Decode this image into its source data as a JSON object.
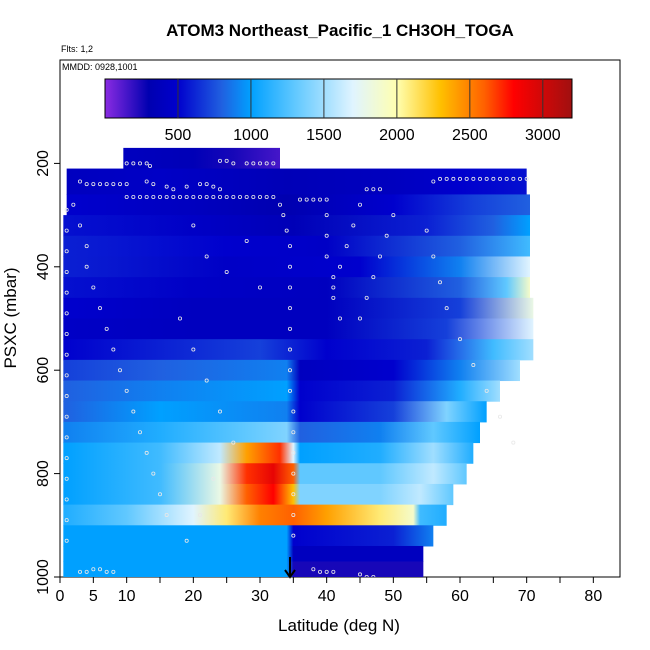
{
  "chart_data": {
    "type": "heatmap",
    "title": "ATOM3 Northeast_Pacific_1 CH3OH_TOGA",
    "flights_note": "Flts: 1,2",
    "date_note": "MMDD: 0928,1001",
    "xlabel": "Latitude (deg N)",
    "ylabel": "PSXC (mbar)",
    "xlim": [
      0,
      84
    ],
    "ylim": [
      1000,
      0
    ],
    "x_ticks": [
      0,
      5,
      10,
      20,
      30,
      40,
      50,
      60,
      70,
      80
    ],
    "y_ticks": [
      200,
      400,
      600,
      800,
      1000
    ],
    "colorbar": {
      "range": [
        0,
        3200
      ],
      "ticks": [
        500,
        1000,
        1500,
        2000,
        2500,
        3000
      ],
      "stops": [
        {
          "v": 0,
          "c": "#8a2be2"
        },
        {
          "v": 300,
          "c": "#0000b0"
        },
        {
          "v": 500,
          "c": "#0000cd"
        },
        {
          "v": 800,
          "c": "#2060e0"
        },
        {
          "v": 1000,
          "c": "#00a0ff"
        },
        {
          "v": 1300,
          "c": "#60c8ff"
        },
        {
          "v": 1700,
          "c": "#e0f4ff"
        },
        {
          "v": 2000,
          "c": "#ffffb0"
        },
        {
          "v": 2300,
          "c": "#ffc000"
        },
        {
          "v": 2600,
          "c": "#ff6000"
        },
        {
          "v": 2800,
          "c": "#ff0000"
        },
        {
          "v": 3200,
          "c": "#a01010"
        }
      ]
    },
    "marker": {
      "x": 34.5,
      "y": 1000,
      "label": "arrow"
    },
    "bands": [
      {
        "p0": 170,
        "p1": 210,
        "x0": 9.5,
        "x1": 33,
        "pts": [
          [
            9.5,
            400
          ],
          [
            20,
            350
          ],
          [
            26,
            250
          ],
          [
            33,
            150
          ]
        ]
      },
      {
        "p0": 210,
        "p1": 260,
        "x0": 1,
        "x1": 70,
        "pts": [
          [
            1,
            400
          ],
          [
            15,
            450
          ],
          [
            34,
            350
          ],
          [
            50,
            400
          ],
          [
            60,
            500
          ],
          [
            70,
            550
          ]
        ]
      },
      {
        "p0": 260,
        "p1": 300,
        "x0": 1,
        "x1": 70.5,
        "pts": [
          [
            1,
            500
          ],
          [
            20,
            400
          ],
          [
            34,
            300
          ],
          [
            50,
            500
          ],
          [
            62,
            700
          ],
          [
            70.5,
            800
          ]
        ]
      },
      {
        "p0": 300,
        "p1": 340,
        "x0": 0.5,
        "x1": 70.5,
        "pts": [
          [
            0.5,
            550
          ],
          [
            20,
            450
          ],
          [
            35,
            350
          ],
          [
            55,
            600
          ],
          [
            65,
            800
          ],
          [
            70.5,
            1000
          ]
        ]
      },
      {
        "p0": 340,
        "p1": 380,
        "x0": 0.5,
        "x1": 70.5,
        "pts": [
          [
            0.5,
            600
          ],
          [
            25,
            500
          ],
          [
            40,
            450
          ],
          [
            60,
            800
          ],
          [
            70.5,
            1200
          ]
        ]
      },
      {
        "p0": 380,
        "p1": 420,
        "x0": 0.5,
        "x1": 70.5,
        "pts": [
          [
            0.5,
            600
          ],
          [
            25,
            450
          ],
          [
            45,
            500
          ],
          [
            60,
            900
          ],
          [
            70.5,
            1700
          ]
        ]
      },
      {
        "p0": 420,
        "p1": 460,
        "x0": 0.5,
        "x1": 70.5,
        "pts": [
          [
            0.5,
            550
          ],
          [
            20,
            450
          ],
          [
            40,
            400
          ],
          [
            60,
            800
          ],
          [
            67,
            1300
          ],
          [
            70.5,
            1900
          ]
        ]
      },
      {
        "p0": 460,
        "p1": 500,
        "x0": 0.5,
        "x1": 71,
        "pts": [
          [
            0.5,
            500
          ],
          [
            20,
            400
          ],
          [
            40,
            400
          ],
          [
            60,
            700
          ],
          [
            71,
            1800
          ]
        ]
      },
      {
        "p0": 500,
        "p1": 540,
        "x0": 0.5,
        "x1": 71,
        "pts": [
          [
            0.5,
            450
          ],
          [
            20,
            400
          ],
          [
            40,
            400
          ],
          [
            58,
            700
          ],
          [
            71,
            1700
          ]
        ]
      },
      {
        "p0": 540,
        "p1": 580,
        "x0": 0.5,
        "x1": 71,
        "pts": [
          [
            0.5,
            500
          ],
          [
            15,
            600
          ],
          [
            30,
            700
          ],
          [
            40,
            500
          ],
          [
            55,
            600
          ],
          [
            65,
            1200
          ],
          [
            71,
            1500
          ]
        ]
      },
      {
        "p0": 580,
        "p1": 620,
        "x0": 0.5,
        "x1": 69,
        "pts": [
          [
            0.5,
            700
          ],
          [
            15,
            800
          ],
          [
            34,
            900
          ],
          [
            36,
            400
          ],
          [
            50,
            500
          ],
          [
            60,
            900
          ],
          [
            69,
            1500
          ]
        ]
      },
      {
        "p0": 620,
        "p1": 660,
        "x0": 0.5,
        "x1": 66,
        "pts": [
          [
            0.5,
            800
          ],
          [
            15,
            900
          ],
          [
            34,
            1000
          ],
          [
            36,
            500
          ],
          [
            50,
            600
          ],
          [
            60,
            1100
          ],
          [
            66,
            1500
          ]
        ]
      },
      {
        "p0": 660,
        "p1": 700,
        "x0": 0.5,
        "x1": 64,
        "pts": [
          [
            0.5,
            800
          ],
          [
            15,
            1000
          ],
          [
            34,
            900
          ],
          [
            36,
            500
          ],
          [
            50,
            700
          ],
          [
            58,
            1400
          ],
          [
            64,
            1000
          ]
        ]
      },
      {
        "p0": 700,
        "p1": 740,
        "x0": 0.5,
        "x1": 63,
        "pts": [
          [
            0.5,
            900
          ],
          [
            15,
            1100
          ],
          [
            28,
            1300
          ],
          [
            34,
            1400
          ],
          [
            36,
            800
          ],
          [
            48,
            900
          ],
          [
            56,
            1300
          ],
          [
            63,
            1000
          ]
        ]
      },
      {
        "p0": 740,
        "p1": 780,
        "x0": 0.5,
        "x1": 62,
        "pts": [
          [
            0.5,
            1000
          ],
          [
            15,
            1200
          ],
          [
            24,
            1600
          ],
          [
            28,
            2400
          ],
          [
            33,
            2700
          ],
          [
            35,
            1700
          ],
          [
            36,
            1000
          ],
          [
            48,
            1100
          ],
          [
            56,
            1500
          ],
          [
            62,
            1100
          ]
        ]
      },
      {
        "p0": 780,
        "p1": 820,
        "x0": 0.5,
        "x1": 61,
        "pts": [
          [
            0.5,
            1000
          ],
          [
            15,
            1200
          ],
          [
            24,
            1800
          ],
          [
            28,
            2700
          ],
          [
            32,
            2900
          ],
          [
            35,
            2600
          ],
          [
            36,
            1300
          ],
          [
            48,
            1300
          ],
          [
            56,
            1600
          ],
          [
            61,
            1300
          ]
        ]
      },
      {
        "p0": 820,
        "p1": 860,
        "x0": 0.5,
        "x1": 59,
        "pts": [
          [
            0.5,
            1000
          ],
          [
            15,
            1200
          ],
          [
            24,
            1800
          ],
          [
            28,
            2600
          ],
          [
            32,
            2800
          ],
          [
            35,
            2300
          ],
          [
            36,
            1400
          ],
          [
            48,
            1400
          ],
          [
            54,
            1600
          ],
          [
            59,
            1300
          ]
        ]
      },
      {
        "p0": 860,
        "p1": 900,
        "x0": 0.5,
        "x1": 58,
        "pts": [
          [
            0.5,
            1100
          ],
          [
            10,
            1300
          ],
          [
            20,
            1700
          ],
          [
            25,
            2100
          ],
          [
            30,
            2500
          ],
          [
            35,
            2600
          ],
          [
            40,
            2400
          ],
          [
            48,
            2100
          ],
          [
            53,
            1900
          ],
          [
            54,
            1200
          ],
          [
            58,
            1100
          ]
        ]
      },
      {
        "p0": 900,
        "p1": 940,
        "x0": 0.5,
        "x1": 56,
        "pts": [
          [
            0.5,
            1000
          ],
          [
            20,
            1000
          ],
          [
            34,
            1000
          ],
          [
            35,
            500
          ],
          [
            50,
            600
          ],
          [
            56,
            900
          ]
        ]
      },
      {
        "p0": 940,
        "p1": 970,
        "x0": 0.5,
        "x1": 54.5,
        "pts": [
          [
            0.5,
            1000
          ],
          [
            20,
            1000
          ],
          [
            34,
            1000
          ],
          [
            35,
            400
          ],
          [
            54.5,
            400
          ]
        ]
      },
      {
        "p0": 970,
        "p1": 1000,
        "x0": 0.5,
        "x1": 54.5,
        "pts": [
          [
            0.5,
            1000
          ],
          [
            20,
            1000
          ],
          [
            34,
            1000
          ],
          [
            35,
            250
          ],
          [
            54.5,
            250
          ]
        ]
      }
    ],
    "samples": [
      [
        10,
        200
      ],
      [
        11,
        200
      ],
      [
        12,
        200
      ],
      [
        13,
        200
      ],
      [
        13.5,
        205
      ],
      [
        24,
        195
      ],
      [
        25,
        195
      ],
      [
        26,
        200
      ],
      [
        28,
        200
      ],
      [
        29,
        200
      ],
      [
        30,
        200
      ],
      [
        31,
        200
      ],
      [
        32,
        200
      ],
      [
        3,
        235
      ],
      [
        4,
        240
      ],
      [
        5,
        240
      ],
      [
        6,
        240
      ],
      [
        7,
        240
      ],
      [
        8,
        240
      ],
      [
        9,
        240
      ],
      [
        10,
        240
      ],
      [
        13,
        235
      ],
      [
        14,
        240
      ],
      [
        16,
        245
      ],
      [
        17,
        250
      ],
      [
        19,
        245
      ],
      [
        21,
        240
      ],
      [
        22,
        240
      ],
      [
        23,
        245
      ],
      [
        24,
        250
      ],
      [
        56,
        235
      ],
      [
        57,
        230
      ],
      [
        58,
        230
      ],
      [
        59,
        230
      ],
      [
        60,
        230
      ],
      [
        61,
        230
      ],
      [
        62,
        230
      ],
      [
        63,
        230
      ],
      [
        64,
        230
      ],
      [
        65,
        230
      ],
      [
        66,
        230
      ],
      [
        67,
        230
      ],
      [
        68,
        230
      ],
      [
        69,
        230
      ],
      [
        70,
        230
      ],
      [
        10,
        265
      ],
      [
        11,
        265
      ],
      [
        12,
        265
      ],
      [
        13,
        265
      ],
      [
        14,
        265
      ],
      [
        15,
        265
      ],
      [
        16,
        265
      ],
      [
        17,
        265
      ],
      [
        18,
        265
      ],
      [
        19,
        265
      ],
      [
        20,
        265
      ],
      [
        21,
        265
      ],
      [
        22,
        265
      ],
      [
        23,
        265
      ],
      [
        24,
        265
      ],
      [
        25,
        265
      ],
      [
        26,
        265
      ],
      [
        27,
        265
      ],
      [
        28,
        265
      ],
      [
        29,
        265
      ],
      [
        30,
        265
      ],
      [
        31,
        265
      ],
      [
        32,
        265
      ],
      [
        36,
        270
      ],
      [
        37,
        270
      ],
      [
        38,
        270
      ],
      [
        39,
        270
      ],
      [
        40,
        270
      ],
      [
        46,
        250
      ],
      [
        47,
        250
      ],
      [
        48,
        250
      ],
      [
        33,
        280
      ],
      [
        33.5,
        300
      ],
      [
        34,
        330
      ],
      [
        34.5,
        360
      ],
      [
        34.5,
        400
      ],
      [
        34.5,
        440
      ],
      [
        34.5,
        480
      ],
      [
        34.5,
        520
      ],
      [
        34.5,
        560
      ],
      [
        34.5,
        600
      ],
      [
        34.5,
        640
      ],
      [
        35,
        680
      ],
      [
        35,
        720
      ],
      [
        35,
        760
      ],
      [
        35,
        800
      ],
      [
        35,
        840
      ],
      [
        35,
        880
      ],
      [
        35,
        920
      ],
      [
        40,
        300
      ],
      [
        40,
        340
      ],
      [
        40,
        380
      ],
      [
        41,
        420
      ],
      [
        41,
        460
      ],
      [
        42,
        500
      ],
      [
        45,
        280
      ],
      [
        44,
        320
      ],
      [
        43,
        360
      ],
      [
        42,
        400
      ],
      [
        41,
        440
      ],
      [
        50,
        300
      ],
      [
        49,
        340
      ],
      [
        48,
        380
      ],
      [
        47,
        420
      ],
      [
        46,
        460
      ],
      [
        45,
        500
      ],
      [
        2,
        280
      ],
      [
        3,
        320
      ],
      [
        4,
        360
      ],
      [
        4,
        400
      ],
      [
        5,
        440
      ],
      [
        6,
        480
      ],
      [
        7,
        520
      ],
      [
        8,
        560
      ],
      [
        9,
        600
      ],
      [
        10,
        640
      ],
      [
        11,
        680
      ],
      [
        12,
        720
      ],
      [
        13,
        760
      ],
      [
        14,
        800
      ],
      [
        15,
        840
      ],
      [
        16,
        880
      ],
      [
        1,
        290
      ],
      [
        1,
        330
      ],
      [
        1,
        370
      ],
      [
        1,
        410
      ],
      [
        1,
        450
      ],
      [
        1,
        490
      ],
      [
        1,
        530
      ],
      [
        1,
        570
      ],
      [
        1,
        610
      ],
      [
        1,
        650
      ],
      [
        1,
        690
      ],
      [
        1,
        730
      ],
      [
        1,
        770
      ],
      [
        1,
        810
      ],
      [
        1,
        850
      ],
      [
        1,
        890
      ],
      [
        1,
        930
      ],
      [
        20,
        320
      ],
      [
        22,
        380
      ],
      [
        25,
        410
      ],
      [
        28,
        350
      ],
      [
        30,
        440
      ],
      [
        18,
        500
      ],
      [
        20,
        560
      ],
      [
        22,
        620
      ],
      [
        24,
        680
      ],
      [
        26,
        740
      ],
      [
        23,
        810
      ],
      [
        21,
        880
      ],
      [
        19,
        930
      ],
      [
        55,
        330
      ],
      [
        56,
        380
      ],
      [
        57,
        430
      ],
      [
        58,
        480
      ],
      [
        60,
        540
      ],
      [
        62,
        590
      ],
      [
        64,
        640
      ],
      [
        66,
        690
      ],
      [
        68,
        740
      ],
      [
        3,
        990
      ],
      [
        4,
        990
      ],
      [
        5,
        985
      ],
      [
        6,
        985
      ],
      [
        7,
        990
      ],
      [
        8,
        990
      ],
      [
        38,
        985
      ],
      [
        39,
        990
      ],
      [
        40,
        990
      ],
      [
        41,
        990
      ],
      [
        45,
        995
      ],
      [
        46,
        1000
      ],
      [
        47,
        1000
      ]
    ]
  }
}
